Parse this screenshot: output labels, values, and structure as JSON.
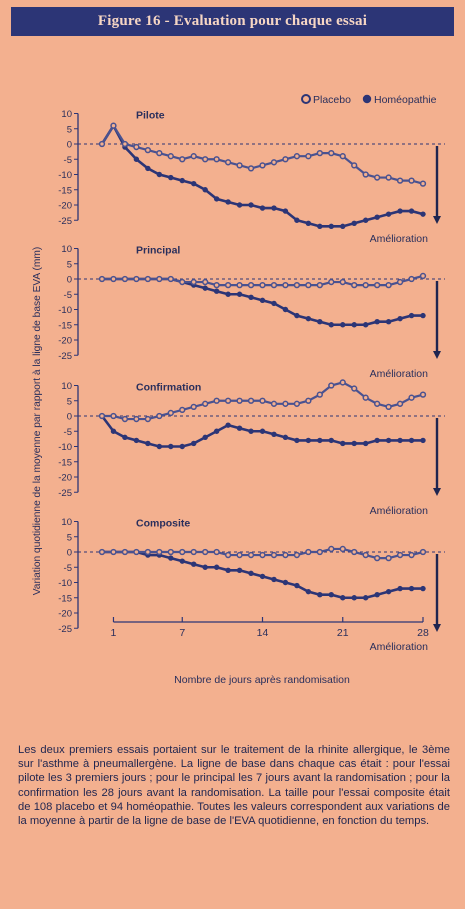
{
  "title": "Figure 16 - Evaluation pour chaque essai",
  "legend": {
    "placebo_label": "Placebo",
    "homeo_label": "Homéopathie"
  },
  "colors": {
    "background": "#f3b08f",
    "navy": "#2c3576",
    "placebo_line": "#4a5290",
    "placebo_fill": "#f3b08f"
  },
  "chart_data": {
    "type": "line",
    "ylabel": "Variation quotidienne de la moyenne par rapport à la ligne de base EVA (mm)",
    "xlabel": "Nombre de jours après randomisation",
    "x_ticks": [
      1,
      7,
      14,
      21,
      28
    ],
    "xlim": [
      1,
      28
    ],
    "y_ticks": [
      10,
      5,
      0,
      -5,
      -10,
      -15,
      -20,
      -25
    ],
    "ylim": [
      -25,
      10
    ],
    "improvement_label": "Amélioration",
    "panels": [
      {
        "title": "Pilote",
        "series": [
          {
            "name": "Placebo",
            "points": [
              [
                0,
                0
              ],
              [
                1,
                6
              ],
              [
                2,
                0
              ],
              [
                3,
                -1
              ],
              [
                4,
                -2
              ],
              [
                5,
                -3
              ],
              [
                6,
                -4
              ],
              [
                7,
                -5
              ],
              [
                8,
                -4
              ],
              [
                9,
                -5
              ],
              [
                10,
                -5
              ],
              [
                11,
                -6
              ],
              [
                12,
                -7
              ],
              [
                13,
                -8
              ],
              [
                14,
                -7
              ],
              [
                15,
                -6
              ],
              [
                16,
                -5
              ],
              [
                17,
                -4
              ],
              [
                18,
                -4
              ],
              [
                19,
                -3
              ],
              [
                20,
                -3
              ],
              [
                21,
                -4
              ],
              [
                22,
                -7
              ],
              [
                23,
                -10
              ],
              [
                24,
                -11
              ],
              [
                25,
                -11
              ],
              [
                26,
                -12
              ],
              [
                27,
                -12
              ],
              [
                28,
                -13
              ]
            ]
          },
          {
            "name": "Homéopathie",
            "points": [
              [
                0,
                0
              ],
              [
                1,
                6
              ],
              [
                2,
                -1
              ],
              [
                3,
                -5
              ],
              [
                4,
                -8
              ],
              [
                5,
                -10
              ],
              [
                6,
                -11
              ],
              [
                7,
                -12
              ],
              [
                8,
                -13
              ],
              [
                9,
                -15
              ],
              [
                10,
                -18
              ],
              [
                11,
                -19
              ],
              [
                12,
                -20
              ],
              [
                13,
                -20
              ],
              [
                14,
                -21
              ],
              [
                15,
                -21
              ],
              [
                16,
                -22
              ],
              [
                17,
                -25
              ],
              [
                18,
                -26
              ],
              [
                19,
                -27
              ],
              [
                20,
                -27
              ],
              [
                21,
                -27
              ],
              [
                22,
                -26
              ],
              [
                23,
                -25
              ],
              [
                24,
                -24
              ],
              [
                25,
                -23
              ],
              [
                26,
                -22
              ],
              [
                27,
                -22
              ],
              [
                28,
                -23
              ]
            ]
          }
        ]
      },
      {
        "title": "Principal",
        "series": [
          {
            "name": "Placebo",
            "points": [
              [
                0,
                0
              ],
              [
                1,
                0
              ],
              [
                2,
                0
              ],
              [
                3,
                0
              ],
              [
                4,
                0
              ],
              [
                5,
                0
              ],
              [
                6,
                0
              ],
              [
                7,
                -1
              ],
              [
                8,
                -1
              ],
              [
                9,
                -1
              ],
              [
                10,
                -2
              ],
              [
                11,
                -2
              ],
              [
                12,
                -2
              ],
              [
                13,
                -2
              ],
              [
                14,
                -2
              ],
              [
                15,
                -2
              ],
              [
                16,
                -2
              ],
              [
                17,
                -2
              ],
              [
                18,
                -2
              ],
              [
                19,
                -2
              ],
              [
                20,
                -1
              ],
              [
                21,
                -1
              ],
              [
                22,
                -2
              ],
              [
                23,
                -2
              ],
              [
                24,
                -2
              ],
              [
                25,
                -2
              ],
              [
                26,
                -1
              ],
              [
                27,
                0
              ],
              [
                28,
                1
              ]
            ]
          },
          {
            "name": "Homéopathie",
            "points": [
              [
                0,
                0
              ],
              [
                1,
                0
              ],
              [
                2,
                0
              ],
              [
                3,
                0
              ],
              [
                4,
                0
              ],
              [
                5,
                0
              ],
              [
                6,
                0
              ],
              [
                7,
                -1
              ],
              [
                8,
                -2
              ],
              [
                9,
                -3
              ],
              [
                10,
                -4
              ],
              [
                11,
                -5
              ],
              [
                12,
                -5
              ],
              [
                13,
                -6
              ],
              [
                14,
                -7
              ],
              [
                15,
                -8
              ],
              [
                16,
                -10
              ],
              [
                17,
                -12
              ],
              [
                18,
                -13
              ],
              [
                19,
                -14
              ],
              [
                20,
                -15
              ],
              [
                21,
                -15
              ],
              [
                22,
                -15
              ],
              [
                23,
                -15
              ],
              [
                24,
                -14
              ],
              [
                25,
                -14
              ],
              [
                26,
                -13
              ],
              [
                27,
                -12
              ],
              [
                28,
                -12
              ]
            ]
          }
        ]
      },
      {
        "title": "Confirmation",
        "series": [
          {
            "name": "Placebo",
            "points": [
              [
                0,
                0
              ],
              [
                1,
                0
              ],
              [
                2,
                -1
              ],
              [
                3,
                -1
              ],
              [
                4,
                -1
              ],
              [
                5,
                0
              ],
              [
                6,
                1
              ],
              [
                7,
                2
              ],
              [
                8,
                3
              ],
              [
                9,
                4
              ],
              [
                10,
                5
              ],
              [
                11,
                5
              ],
              [
                12,
                5
              ],
              [
                13,
                5
              ],
              [
                14,
                5
              ],
              [
                15,
                4
              ],
              [
                16,
                4
              ],
              [
                17,
                4
              ],
              [
                18,
                5
              ],
              [
                19,
                7
              ],
              [
                20,
                10
              ],
              [
                21,
                11
              ],
              [
                22,
                9
              ],
              [
                23,
                6
              ],
              [
                24,
                4
              ],
              [
                25,
                3
              ],
              [
                26,
                4
              ],
              [
                27,
                6
              ],
              [
                28,
                7
              ]
            ]
          },
          {
            "name": "Homéopathie",
            "points": [
              [
                0,
                0
              ],
              [
                1,
                -5
              ],
              [
                2,
                -7
              ],
              [
                3,
                -8
              ],
              [
                4,
                -9
              ],
              [
                5,
                -10
              ],
              [
                6,
                -10
              ],
              [
                7,
                -10
              ],
              [
                8,
                -9
              ],
              [
                9,
                -7
              ],
              [
                10,
                -5
              ],
              [
                11,
                -3
              ],
              [
                12,
                -4
              ],
              [
                13,
                -5
              ],
              [
                14,
                -5
              ],
              [
                15,
                -6
              ],
              [
                16,
                -7
              ],
              [
                17,
                -8
              ],
              [
                18,
                -8
              ],
              [
                19,
                -8
              ],
              [
                20,
                -8
              ],
              [
                21,
                -9
              ],
              [
                22,
                -9
              ],
              [
                23,
                -9
              ],
              [
                24,
                -8
              ],
              [
                25,
                -8
              ],
              [
                26,
                -8
              ],
              [
                27,
                -8
              ],
              [
                28,
                -8
              ]
            ]
          }
        ]
      },
      {
        "title": "Composite",
        "series": [
          {
            "name": "Placebo",
            "points": [
              [
                0,
                0
              ],
              [
                1,
                0
              ],
              [
                2,
                0
              ],
              [
                3,
                0
              ],
              [
                4,
                0
              ],
              [
                5,
                0
              ],
              [
                6,
                0
              ],
              [
                7,
                0
              ],
              [
                8,
                0
              ],
              [
                9,
                0
              ],
              [
                10,
                0
              ],
              [
                11,
                -1
              ],
              [
                12,
                -1
              ],
              [
                13,
                -1
              ],
              [
                14,
                -1
              ],
              [
                15,
                -1
              ],
              [
                16,
                -1
              ],
              [
                17,
                -1
              ],
              [
                18,
                0
              ],
              [
                19,
                0
              ],
              [
                20,
                1
              ],
              [
                21,
                1
              ],
              [
                22,
                0
              ],
              [
                23,
                -1
              ],
              [
                24,
                -2
              ],
              [
                25,
                -2
              ],
              [
                26,
                -1
              ],
              [
                27,
                -1
              ],
              [
                28,
                0
              ]
            ]
          },
          {
            "name": "Homéopathie",
            "points": [
              [
                0,
                0
              ],
              [
                1,
                0
              ],
              [
                2,
                0
              ],
              [
                3,
                0
              ],
              [
                4,
                -1
              ],
              [
                5,
                -1
              ],
              [
                6,
                -2
              ],
              [
                7,
                -3
              ],
              [
                8,
                -4
              ],
              [
                9,
                -5
              ],
              [
                10,
                -5
              ],
              [
                11,
                -6
              ],
              [
                12,
                -6
              ],
              [
                13,
                -7
              ],
              [
                14,
                -8
              ],
              [
                15,
                -9
              ],
              [
                16,
                -10
              ],
              [
                17,
                -11
              ],
              [
                18,
                -13
              ],
              [
                19,
                -14
              ],
              [
                20,
                -14
              ],
              [
                21,
                -15
              ],
              [
                22,
                -15
              ],
              [
                23,
                -15
              ],
              [
                24,
                -14
              ],
              [
                25,
                -13
              ],
              [
                26,
                -12
              ],
              [
                27,
                -12
              ],
              [
                28,
                -12
              ]
            ]
          }
        ]
      }
    ]
  },
  "caption": "Les deux premiers essais portaient sur le traitement de la rhinite allergique, le 3ème sur l'asthme à pneumallergène. La ligne de base dans chaque cas était : pour l'essai pilote les 3 premiers jours ; pour le principal les 7 jours avant la randomisation ; pour la confirmation les 28 jours avant la randomisation. La taille pour l'essai composite était de 108 placebo et 94 homéopathie. Toutes les valeurs correspondent aux variations de la moyenne à partir de la ligne de base de l'EVA quotidienne, en fonction du temps."
}
